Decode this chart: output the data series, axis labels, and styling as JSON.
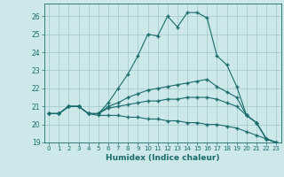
{
  "xlabel": "Humidex (Indice chaleur)",
  "xlim": [
    -0.5,
    23.5
  ],
  "ylim": [
    19,
    26.7
  ],
  "yticks": [
    19,
    20,
    21,
    22,
    23,
    24,
    25,
    26
  ],
  "xticks": [
    0,
    1,
    2,
    3,
    4,
    5,
    6,
    7,
    8,
    9,
    10,
    11,
    12,
    13,
    14,
    15,
    16,
    17,
    18,
    19,
    20,
    21,
    22,
    23
  ],
  "background_color": "#cde8e8",
  "grid_color": "#a0c8c8",
  "line_color": "#1a6b6b",
  "series": [
    [
      20.6,
      20.6,
      21.0,
      21.0,
      20.6,
      20.6,
      21.2,
      22.0,
      22.8,
      23.8,
      25.0,
      24.9,
      26.0,
      25.4,
      26.2,
      26.2,
      25.9,
      23.8,
      23.3,
      22.1,
      20.5,
      20.1,
      19.2,
      19.0
    ],
    [
      20.6,
      20.6,
      21.0,
      21.0,
      20.6,
      20.6,
      21.0,
      21.2,
      21.5,
      21.7,
      21.9,
      22.0,
      22.1,
      22.2,
      22.3,
      22.4,
      22.5,
      22.1,
      21.8,
      21.5,
      20.5,
      20.1,
      19.2,
      19.0
    ],
    [
      20.6,
      20.6,
      21.0,
      21.0,
      20.6,
      20.6,
      20.9,
      21.0,
      21.1,
      21.2,
      21.3,
      21.3,
      21.4,
      21.4,
      21.5,
      21.5,
      21.5,
      21.4,
      21.2,
      21.0,
      20.5,
      20.1,
      19.2,
      19.0
    ],
    [
      20.6,
      20.6,
      21.0,
      21.0,
      20.6,
      20.5,
      20.5,
      20.5,
      20.4,
      20.4,
      20.3,
      20.3,
      20.2,
      20.2,
      20.1,
      20.1,
      20.0,
      20.0,
      19.9,
      19.8,
      19.6,
      19.4,
      19.2,
      19.0
    ]
  ]
}
